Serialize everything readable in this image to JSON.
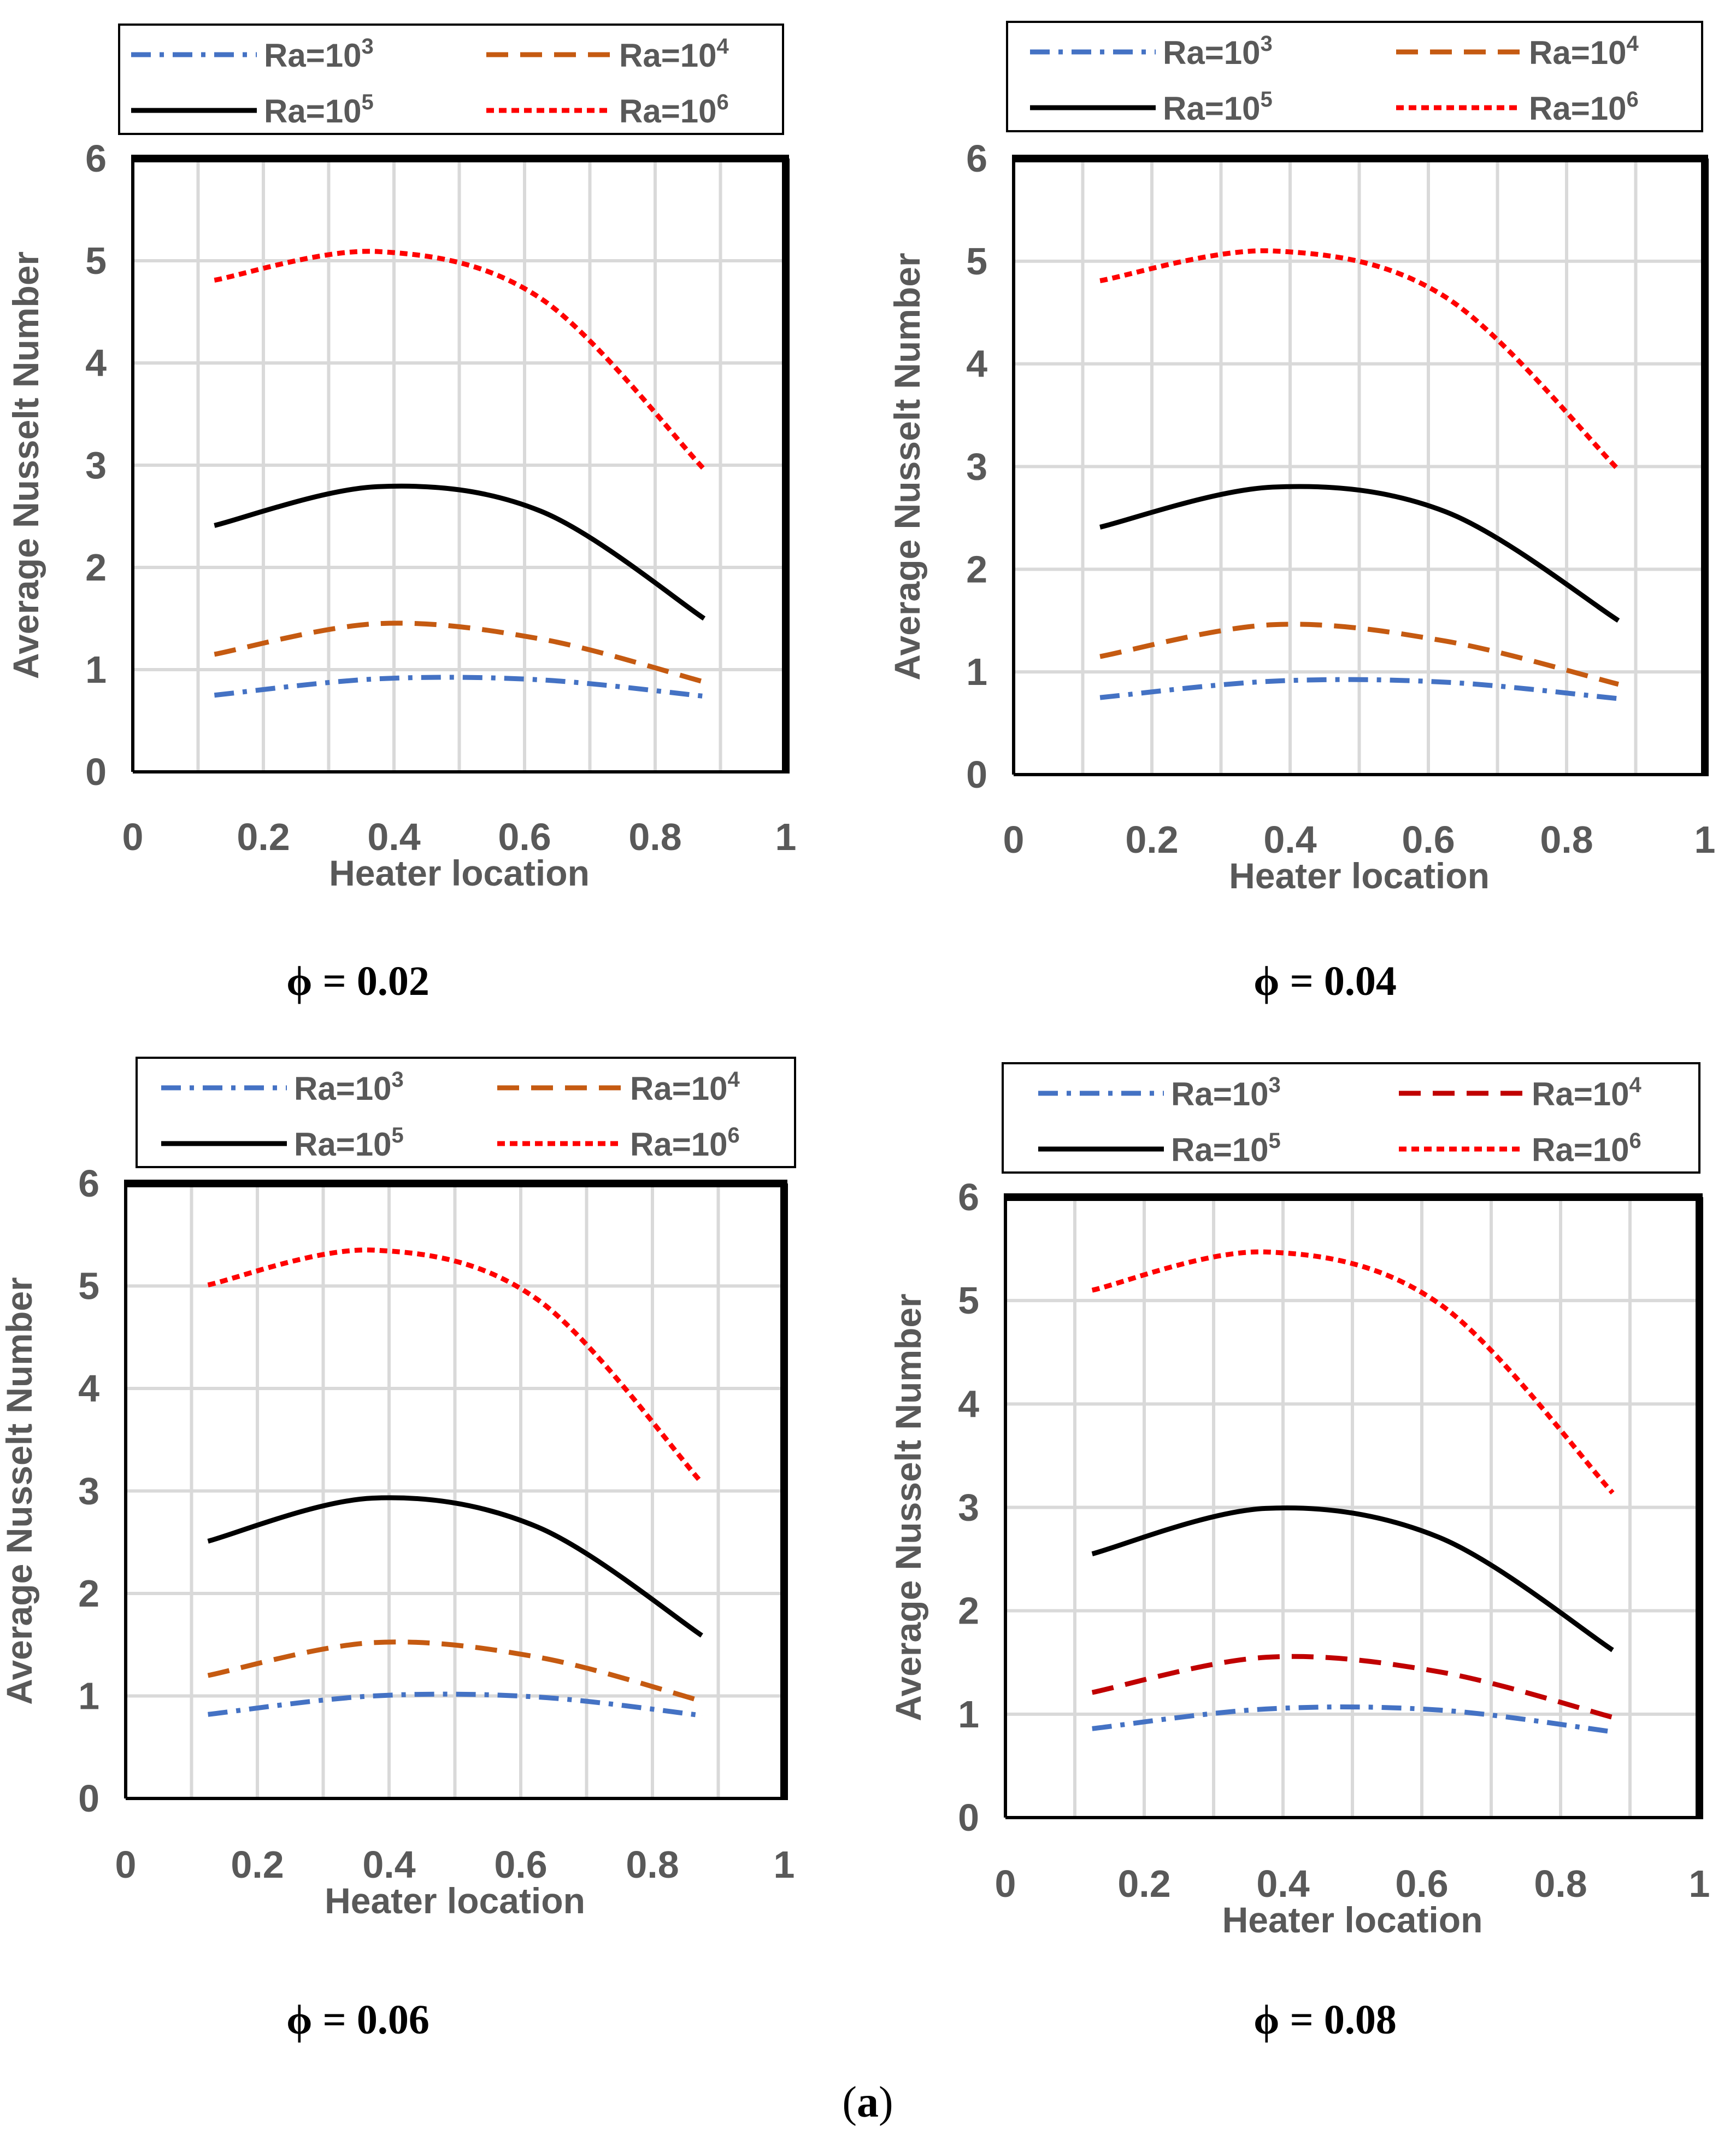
{
  "figure_label": {
    "open": "(",
    "letter": "a",
    "close": ")"
  },
  "colors": {
    "ra3": "#4472C4",
    "ra4": "#C55A11",
    "ra4_alt": "#C00000",
    "ra5": "#000000",
    "ra6": "#FF0000",
    "grid": "#D9D9D9",
    "text": "#595959"
  },
  "chart_data": [
    {
      "type": "line",
      "caption": "ϕ = 0.02",
      "xlabel": "Heater location",
      "ylabel": "Average Nusselt Number",
      "xlim": [
        0,
        1
      ],
      "ylim": [
        0,
        6
      ],
      "xticks": [
        "0",
        "0.2",
        "0.4",
        "0.6",
        "0.8",
        "1"
      ],
      "yticks": [
        "0",
        "1",
        "2",
        "3",
        "4",
        "5",
        "6"
      ],
      "grid": true,
      "legend_position": "top",
      "x": [
        0.125,
        0.375,
        0.625,
        0.875
      ],
      "series": [
        {
          "name": "Ra=10",
          "sup": "3",
          "style": "dashdot",
          "color": "#4472C4",
          "values": [
            0.75,
            0.91,
            0.9,
            0.74
          ]
        },
        {
          "name": "Ra=10",
          "sup": "4",
          "style": "dash",
          "color": "#C55A11",
          "values": [
            1.15,
            1.45,
            1.3,
            0.88
          ]
        },
        {
          "name": "Ra=10",
          "sup": "5",
          "style": "solid",
          "color": "#000000",
          "values": [
            2.41,
            2.79,
            2.55,
            1.5
          ]
        },
        {
          "name": "Ra=10",
          "sup": "6",
          "style": "dot",
          "color": "#FF0000",
          "values": [
            4.81,
            5.09,
            4.63,
            2.96
          ]
        }
      ]
    },
    {
      "type": "line",
      "caption": "ϕ = 0.04",
      "xlabel": "Heater location",
      "ylabel": "Average Nusselt Number",
      "xlim": [
        0,
        1
      ],
      "ylim": [
        0,
        6
      ],
      "xticks": [
        "0",
        "0.2",
        "0.4",
        "0.6",
        "0.8",
        "1"
      ],
      "yticks": [
        "0",
        "1",
        "2",
        "3",
        "4",
        "5",
        "6"
      ],
      "grid": true,
      "legend_position": "top",
      "x": [
        0.125,
        0.375,
        0.625,
        0.875
      ],
      "series": [
        {
          "name": "Ra=10",
          "sup": "3",
          "style": "dashdot",
          "color": "#4472C4",
          "values": [
            0.75,
            0.91,
            0.9,
            0.74
          ]
        },
        {
          "name": "Ra=10",
          "sup": "4",
          "style": "dash",
          "color": "#C55A11",
          "values": [
            1.15,
            1.46,
            1.3,
            0.88
          ]
        },
        {
          "name": "Ra=10",
          "sup": "5",
          "style": "solid",
          "color": "#000000",
          "values": [
            2.41,
            2.8,
            2.56,
            1.5
          ]
        },
        {
          "name": "Ra=10",
          "sup": "6",
          "style": "dot",
          "color": "#FF0000",
          "values": [
            4.81,
            5.1,
            4.65,
            2.97
          ]
        }
      ]
    },
    {
      "type": "line",
      "caption": "ϕ = 0.06",
      "xlabel": "Heater location",
      "ylabel": "Average Nusselt Number",
      "xlim": [
        0,
        1
      ],
      "ylim": [
        0,
        6
      ],
      "xticks": [
        "0",
        "0.2",
        "0.4",
        "0.6",
        "0.8",
        "1"
      ],
      "yticks": [
        "0",
        "1",
        "2",
        "3",
        "4",
        "5",
        "6"
      ],
      "grid": true,
      "legend_position": "top",
      "x": [
        0.125,
        0.375,
        0.625,
        0.875
      ],
      "series": [
        {
          "name": "Ra=10",
          "sup": "3",
          "style": "dashdot",
          "color": "#4472C4",
          "values": [
            0.82,
            1.0,
            0.99,
            0.81
          ]
        },
        {
          "name": "Ra=10",
          "sup": "4",
          "style": "dash",
          "color": "#C55A11",
          "values": [
            1.2,
            1.52,
            1.38,
            0.95
          ]
        },
        {
          "name": "Ra=10",
          "sup": "5",
          "style": "solid",
          "color": "#000000",
          "values": [
            2.51,
            2.93,
            2.65,
            1.59
          ]
        },
        {
          "name": "Ra=10",
          "sup": "6",
          "style": "dot",
          "color": "#FF0000",
          "values": [
            5.01,
            5.35,
            4.87,
            3.08
          ]
        }
      ]
    },
    {
      "type": "line",
      "caption": "ϕ = 0.08",
      "xlabel": "Heater location",
      "ylabel": "Average Nusselt Number",
      "xlim": [
        0,
        1
      ],
      "ylim": [
        0,
        6
      ],
      "xticks": [
        "0",
        "0.2",
        "0.4",
        "0.6",
        "0.8",
        "1"
      ],
      "yticks": [
        "0",
        "1",
        "2",
        "3",
        "4",
        "5",
        "6"
      ],
      "grid": true,
      "legend_position": "top",
      "x": [
        0.125,
        0.375,
        0.625,
        0.875
      ],
      "series": [
        {
          "name": "Ra=10",
          "sup": "3",
          "style": "dashdot",
          "color": "#4472C4",
          "values": [
            0.86,
            1.05,
            1.04,
            0.83
          ]
        },
        {
          "name": "Ra=10",
          "sup": "4",
          "style": "dash",
          "color": "#C00000",
          "values": [
            1.21,
            1.55,
            1.41,
            0.97
          ]
        },
        {
          "name": "Ra=10",
          "sup": "5",
          "style": "solid",
          "color": "#000000",
          "values": [
            2.55,
            2.99,
            2.71,
            1.62
          ]
        },
        {
          "name": "Ra=10",
          "sup": "6",
          "style": "dot",
          "color": "#FF0000",
          "values": [
            5.1,
            5.47,
            4.97,
            3.14
          ]
        }
      ]
    }
  ]
}
